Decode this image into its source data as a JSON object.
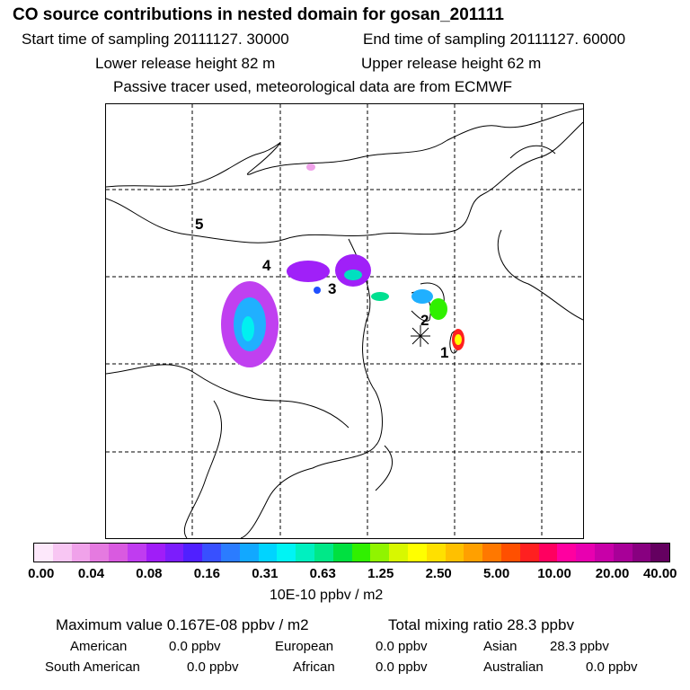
{
  "title": "CO  source contributions in nested domain for gosan_201111",
  "sampling": {
    "start": "Start time of sampling 20111127. 30000",
    "end": "End time of sampling 20111127. 60000"
  },
  "release": {
    "lower": "Lower release height   82 m",
    "upper": "Upper release height   62 m"
  },
  "tracer_note": "Passive tracer used, meteorological data are from ECMWF",
  "map": {
    "labels": [
      "1",
      "2",
      "3",
      "4",
      "5"
    ]
  },
  "colorbar": {
    "colors": [
      "#fde8fb",
      "#f8c6f3",
      "#f0a2ea",
      "#e57ae0",
      "#d95ae0",
      "#c03cf0",
      "#a01df8",
      "#7c1dfc",
      "#5020ff",
      "#3850ff",
      "#2b7cff",
      "#12a8ff",
      "#00d4ff",
      "#00f4f4",
      "#00f0c0",
      "#00e888",
      "#00e040",
      "#30f000",
      "#90f400",
      "#d8f800",
      "#ffff00",
      "#ffe000",
      "#ffc000",
      "#ffa000",
      "#ff7800",
      "#ff5000",
      "#ff2020",
      "#ff0060",
      "#ff00a0",
      "#e800b0",
      "#c800a8",
      "#a80098",
      "#880080",
      "#640060"
    ],
    "ticks": [
      "0.00",
      "0.04",
      "0.08",
      "0.16",
      "0.31",
      "0.63",
      "1.25",
      "2.50",
      "5.00",
      "10.00",
      "20.00",
      "40.00"
    ],
    "units": "10E-10 ppbv / m2"
  },
  "summary": {
    "max": "Maximum value  0.167E-08 ppbv / m2",
    "total": "Total mixing ratio       28.3 ppbv"
  },
  "regions": [
    {
      "name": "American",
      "value": "0.0 ppbv"
    },
    {
      "name": "European",
      "value": "0.0 ppbv"
    },
    {
      "name": "Asian",
      "value": "28.3 ppbv"
    },
    {
      "name": "South American",
      "value": "0.0 ppbv"
    },
    {
      "name": "African",
      "value": "0.0 ppbv"
    },
    {
      "name": "Australian",
      "value": "0.0 ppbv"
    }
  ]
}
